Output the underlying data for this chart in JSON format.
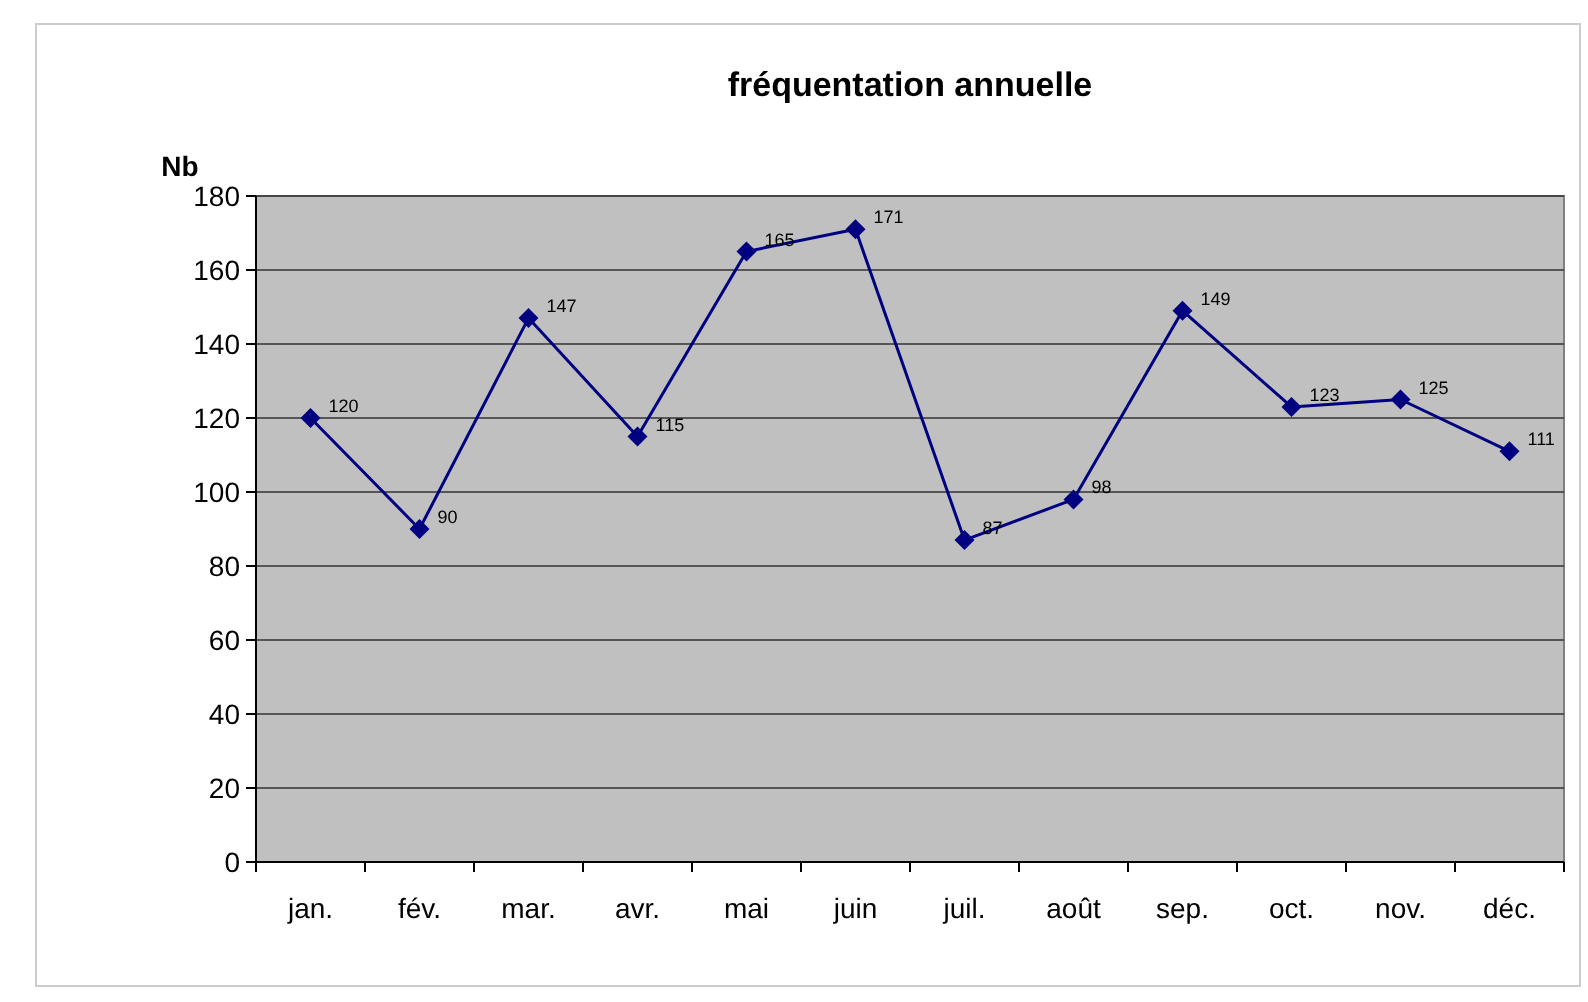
{
  "chart_data": {
    "type": "line",
    "title": "fréquentation annuelle",
    "ylabel": "Nb",
    "categories": [
      "jan.",
      "fév.",
      "mar.",
      "avr.",
      "mai",
      "juin",
      "juil.",
      "août",
      "sep.",
      "oct.",
      "nov.",
      "déc."
    ],
    "series": [
      {
        "color": "#000080",
        "values": [
          120,
          90,
          147,
          115,
          165,
          171,
          87,
          98,
          149,
          123,
          125,
          111
        ]
      }
    ],
    "ylim": [
      0,
      180
    ],
    "yticks": [
      0,
      20,
      40,
      60,
      80,
      100,
      120,
      140,
      160,
      180
    ],
    "grid": "y",
    "marker": "diamond",
    "line_style": "solid",
    "data_labels": true
  }
}
